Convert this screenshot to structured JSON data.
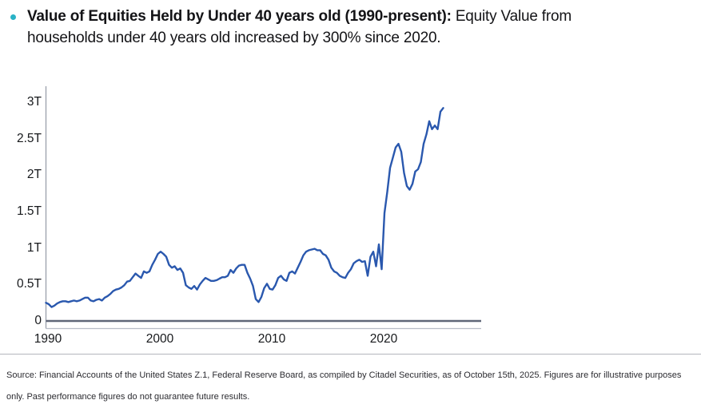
{
  "title": {
    "bullet_color": "#29b2c6",
    "bold": "Value of Equities Held by Under 40 years old (1990-present):",
    "regular": "Equity Value from households under 40 years old increased by 300% since 2020."
  },
  "chart_data": {
    "type": "line",
    "title": "Value of Equities Held by Under 40 years old (1990-present)",
    "unit": "USD trillions",
    "frequency": "quarterly",
    "x_start_year": 1990,
    "x_end_year": 2025.5,
    "ylim": [
      0,
      3.2
    ],
    "grid": false,
    "legend_position": "none",
    "axis_color": "#9aa0ab",
    "baseline_color": "#b7bcc6",
    "zero_line_color": "#5f6678",
    "y_ticks": [
      {
        "label": "3T",
        "value": 3
      },
      {
        "label": "2.5T",
        "value": 2.5
      },
      {
        "label": "2T",
        "value": 2
      },
      {
        "label": "1.5T",
        "value": 1.5
      },
      {
        "label": "1T",
        "value": 1
      },
      {
        "label": "0.5T",
        "value": 0.5
      },
      {
        "label": "0",
        "value": 0
      }
    ],
    "x_ticks": [
      {
        "label": "1990",
        "year": 1990
      },
      {
        "label": "2000",
        "year": 2000
      },
      {
        "label": "2010",
        "year": 2010
      },
      {
        "label": "2020",
        "year": 2020
      }
    ],
    "series": [
      {
        "name": "Equity value held by households under 40",
        "color": "#2a58ae",
        "values": [
          0.25,
          0.23,
          0.19,
          0.21,
          0.24,
          0.26,
          0.27,
          0.27,
          0.26,
          0.27,
          0.28,
          0.27,
          0.28,
          0.3,
          0.32,
          0.32,
          0.28,
          0.27,
          0.29,
          0.3,
          0.28,
          0.32,
          0.34,
          0.37,
          0.41,
          0.43,
          0.44,
          0.46,
          0.49,
          0.54,
          0.55,
          0.6,
          0.65,
          0.62,
          0.59,
          0.68,
          0.66,
          0.68,
          0.77,
          0.84,
          0.92,
          0.95,
          0.92,
          0.88,
          0.77,
          0.73,
          0.75,
          0.7,
          0.72,
          0.66,
          0.49,
          0.46,
          0.44,
          0.48,
          0.43,
          0.5,
          0.55,
          0.59,
          0.57,
          0.55,
          0.55,
          0.56,
          0.58,
          0.6,
          0.6,
          0.62,
          0.7,
          0.66,
          0.72,
          0.76,
          0.77,
          0.77,
          0.66,
          0.58,
          0.48,
          0.3,
          0.26,
          0.33,
          0.45,
          0.51,
          0.44,
          0.43,
          0.49,
          0.59,
          0.62,
          0.57,
          0.55,
          0.66,
          0.68,
          0.65,
          0.73,
          0.81,
          0.9,
          0.95,
          0.97,
          0.98,
          0.99,
          0.97,
          0.97,
          0.92,
          0.9,
          0.84,
          0.73,
          0.68,
          0.66,
          0.62,
          0.6,
          0.59,
          0.66,
          0.71,
          0.79,
          0.82,
          0.84,
          0.81,
          0.82,
          0.62,
          0.88,
          0.95,
          0.75,
          1.05,
          0.71,
          1.48,
          1.77,
          2.1,
          2.24,
          2.38,
          2.43,
          2.32,
          2.03,
          1.85,
          1.8,
          1.88,
          2.05,
          2.08,
          2.18,
          2.43,
          2.56,
          2.74,
          2.63,
          2.68,
          2.63,
          2.87,
          2.92
        ]
      }
    ]
  },
  "source": {
    "lines": [
      "Source: Financial Accounts of the United States Z.1, Federal Reserve Board, as compiled by Citadel Securities, as of October 15th, 2025. Figures are for illustrative purposes",
      "only. Past performance figures do not guarantee future results."
    ]
  }
}
